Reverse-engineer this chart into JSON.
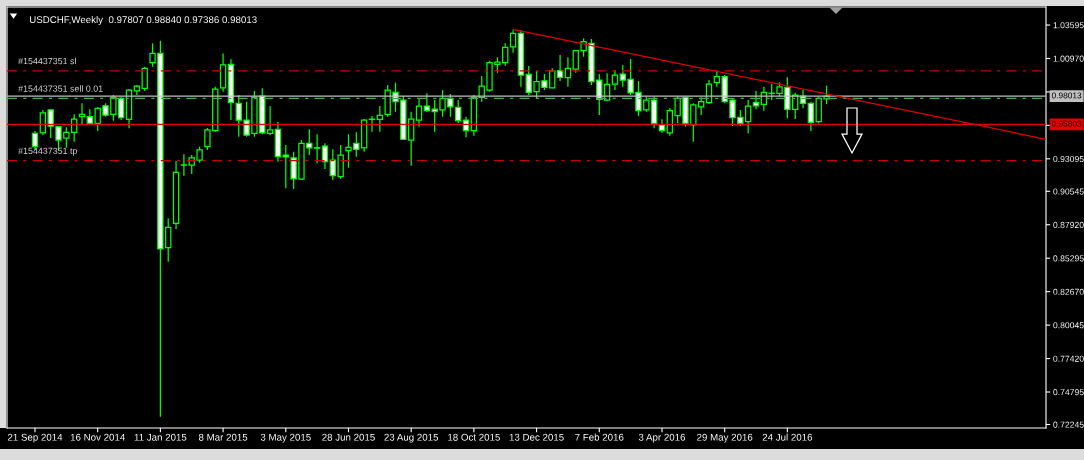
{
  "chart_data": {
    "type": "candlestick",
    "title": "USDCHF,Weekly  0.97807 0.98840 0.97386 0.98013",
    "x": [
      "2014-09-21",
      "2014-09-28",
      "2014-10-05",
      "2014-10-12",
      "2014-10-19",
      "2014-10-26",
      "2014-11-02",
      "2014-11-09",
      "2014-11-16",
      "2014-11-23",
      "2014-11-30",
      "2014-12-07",
      "2014-12-14",
      "2014-12-21",
      "2014-12-28",
      "2015-01-04",
      "2015-01-11",
      "2015-01-18",
      "2015-01-25",
      "2015-02-01",
      "2015-02-08",
      "2015-02-15",
      "2015-02-22",
      "2015-03-01",
      "2015-03-08",
      "2015-03-15",
      "2015-03-22",
      "2015-03-29",
      "2015-04-05",
      "2015-04-12",
      "2015-04-19",
      "2015-04-26",
      "2015-05-03",
      "2015-05-10",
      "2015-05-17",
      "2015-05-24",
      "2015-05-31",
      "2015-06-07",
      "2015-06-14",
      "2015-06-21",
      "2015-06-28",
      "2015-07-05",
      "2015-07-12",
      "2015-07-19",
      "2015-07-26",
      "2015-08-02",
      "2015-08-09",
      "2015-08-16",
      "2015-08-23",
      "2015-08-30",
      "2015-09-06",
      "2015-09-13",
      "2015-09-20",
      "2015-09-27",
      "2015-10-04",
      "2015-10-11",
      "2015-10-18",
      "2015-10-25",
      "2015-11-01",
      "2015-11-08",
      "2015-11-15",
      "2015-11-22",
      "2015-11-29",
      "2015-12-06",
      "2015-12-13",
      "2015-12-20",
      "2015-12-27",
      "2016-01-03",
      "2016-01-10",
      "2016-01-17",
      "2016-01-24",
      "2016-01-31",
      "2016-02-07",
      "2016-02-14",
      "2016-02-21",
      "2016-02-28",
      "2016-03-06",
      "2016-03-13",
      "2016-03-20",
      "2016-03-27",
      "2016-04-03",
      "2016-04-10",
      "2016-04-17",
      "2016-04-24",
      "2016-05-01",
      "2016-05-08",
      "2016-05-15",
      "2016-05-22",
      "2016-05-29",
      "2016-06-05",
      "2016-06-12",
      "2016-06-19",
      "2016-06-26",
      "2016-07-03",
      "2016-07-10",
      "2016-07-17",
      "2016-07-24",
      "2016-07-31",
      "2016-08-07",
      "2016-08-14",
      "2016-08-21",
      "2016-08-28"
    ],
    "series": [
      {
        "color": "#00ff00",
        "colors": [
          "#ffffff",
          "#000000",
          "#ffffff",
          "#ffffff",
          "#000000",
          "#000000",
          "#000000",
          "#ffffff",
          "#000000",
          "#ffffff",
          "#000000",
          "#ffffff",
          "#000000",
          "#000000",
          "#000000",
          "#000000",
          "#ffffff",
          "#000000",
          "#000000",
          "#00ff00",
          "#000000",
          "#000000",
          "#000000",
          "#000000",
          "#000000",
          "#ffffff",
          "#ffffff",
          "#ffffff",
          "#000000",
          "#ffffff",
          "#000000",
          "#ffffff",
          "#ffffff",
          "#ffffff",
          "#000000",
          "#ffffff",
          "#00ff00",
          "#ffffff",
          "#ffffff",
          "#000000",
          "#000000",
          "#ffffff",
          "#000000",
          "#00ff00",
          "#000000",
          "#000000",
          "#ffffff",
          "#ffffff",
          "#000000",
          "#000000",
          "#ffffff",
          "#ffffff",
          "#000000",
          "#ffffff",
          "#ffffff",
          "#ffffff",
          "#000000",
          "#000000",
          "#000000",
          "#000000",
          "#000000",
          "#000000",
          "#ffffff",
          "#ffffff",
          "#000000",
          "#ffffff",
          "#000000",
          "#ffffff",
          "#000000",
          "#000000",
          "#000000",
          "#ffffff",
          "#ffffff",
          "#000000",
          "#000000",
          "#ffffff",
          "#ffffff",
          "#ffffff",
          "#000000",
          "#ffffff",
          "#ffffff",
          "#000000",
          "#000000",
          "#ffffff",
          "#000000",
          "#000000",
          "#000000",
          "#000000",
          "#ffffff",
          "#ffffff",
          "#ffffff",
          "#000000",
          "#ffffff",
          "#000000",
          "#00ff00",
          "#000000",
          "#ffffff",
          "#000000",
          "#ffffff",
          "#ffffff",
          "#000000",
          "#000000"
        ],
        "ohlc": [
          [
            0.951,
            0.9528,
            0.9379,
            0.9405
          ],
          [
            0.9514,
            0.9693,
            0.9496,
            0.9671
          ],
          [
            0.9693,
            0.9698,
            0.9473,
            0.9567
          ],
          [
            0.9562,
            0.9567,
            0.9379,
            0.9457
          ],
          [
            0.9471,
            0.9557,
            0.9399,
            0.9518
          ],
          [
            0.9518,
            0.9659,
            0.9444,
            0.9622
          ],
          [
            0.964,
            0.9745,
            0.9575,
            0.9659
          ],
          [
            0.964,
            0.9698,
            0.958,
            0.9588
          ],
          [
            0.9588,
            0.9714,
            0.9528,
            0.9706
          ],
          [
            0.9726,
            0.9745,
            0.964,
            0.9653
          ],
          [
            0.9659,
            0.981,
            0.9609,
            0.9792
          ],
          [
            0.9784,
            0.9792,
            0.9614,
            0.9632
          ],
          [
            0.962,
            0.9857,
            0.9549,
            0.9849
          ],
          [
            0.9842,
            0.9889,
            0.981,
            0.9881
          ],
          [
            0.9863,
            1.0032,
            0.9842,
            1.002
          ],
          [
            1.0064,
            1.0216,
            1.0032,
            1.0137
          ],
          [
            1.0137,
            1.0236,
            0.7286,
            0.8602
          ],
          [
            0.8612,
            0.8843,
            0.8502,
            0.8772
          ],
          [
            0.8803,
            0.9292,
            0.8759,
            0.9203
          ],
          [
            0.9261,
            0.9345,
            0.9177,
            0.9261
          ],
          [
            0.9261,
            0.9339,
            0.919,
            0.9316
          ],
          [
            0.9299,
            0.9405,
            0.9279,
            0.9379
          ],
          [
            0.9405,
            0.9551,
            0.9379,
            0.9536
          ],
          [
            0.953,
            0.9875,
            0.9522,
            0.9857
          ],
          [
            0.9867,
            1.0137,
            0.9836,
            1.0046
          ],
          [
            1.0051,
            1.009,
            0.9614,
            0.9753
          ],
          [
            0.9745,
            0.981,
            0.9483,
            0.9614
          ],
          [
            0.9614,
            0.9758,
            0.9483,
            0.9496
          ],
          [
            0.951,
            0.9842,
            0.9483,
            0.9792
          ],
          [
            0.9802,
            0.9863,
            0.9502,
            0.9514
          ],
          [
            0.951,
            0.9724,
            0.9496,
            0.9536
          ],
          [
            0.9541,
            0.9601,
            0.9287,
            0.9326
          ],
          [
            0.9339,
            0.9418,
            0.9078,
            0.9324
          ],
          [
            0.9316,
            0.9365,
            0.9073,
            0.9153
          ],
          [
            0.9151,
            0.9457,
            0.9143,
            0.9431
          ],
          [
            0.9431,
            0.9541,
            0.9339,
            0.9396
          ],
          [
            0.9396,
            0.9502,
            0.9274,
            0.9396
          ],
          [
            0.941,
            0.9431,
            0.923,
            0.9287
          ],
          [
            0.9299,
            0.9384,
            0.9143,
            0.9177
          ],
          [
            0.9169,
            0.9418,
            0.9153,
            0.9339
          ],
          [
            0.9373,
            0.9502,
            0.924,
            0.9399
          ],
          [
            0.9431,
            0.9518,
            0.9326,
            0.9384
          ],
          [
            0.9396,
            0.9622,
            0.9365,
            0.9614
          ],
          [
            0.962,
            0.9645,
            0.9522,
            0.962
          ],
          [
            0.962,
            0.9724,
            0.9522,
            0.965
          ],
          [
            0.9659,
            0.9889,
            0.964,
            0.9849
          ],
          [
            0.9831,
            0.9907,
            0.9679,
            0.9758
          ],
          [
            0.9771,
            0.9802,
            0.9457,
            0.9463
          ],
          [
            0.9457,
            0.9679,
            0.9256,
            0.9622
          ],
          [
            0.9614,
            0.9784,
            0.9562,
            0.9724
          ],
          [
            0.9724,
            0.9824,
            0.9677,
            0.9687
          ],
          [
            0.9699,
            0.9771,
            0.9522,
            0.9679
          ],
          [
            0.9693,
            0.9849,
            0.964,
            0.9784
          ],
          [
            0.9784,
            0.9818,
            0.964,
            0.9718
          ],
          [
            0.9714,
            0.9771,
            0.9588,
            0.9609
          ],
          [
            0.9614,
            0.964,
            0.9478,
            0.953
          ],
          [
            0.953,
            0.981,
            0.9491,
            0.9792
          ],
          [
            0.9792,
            0.9959,
            0.9758,
            0.9881
          ],
          [
            0.9849,
            1.0079,
            0.9836,
            1.0064
          ],
          [
            1.0051,
            1.0106,
            0.9985,
            1.0069
          ],
          [
            1.0064,
            1.0216,
            1.004,
            1.0185
          ],
          [
            1.0189,
            1.0319,
            1.0142,
            1.0294
          ],
          [
            1.0294,
            1.0319,
            0.9875,
            0.9967
          ],
          [
            0.9973,
            1.0038,
            0.981,
            0.9831
          ],
          [
            0.9836,
            1.0001,
            0.9784,
            0.9915
          ],
          [
            0.9922,
            0.9975,
            0.9849,
            0.9871
          ],
          [
            0.9867,
            1.002,
            0.9863,
            0.9999
          ],
          [
            1.0001,
            1.0124,
            0.992,
            0.9949
          ],
          [
            0.9946,
            1.0106,
            0.9875,
            1.002
          ],
          [
            1.0014,
            1.0163,
            0.9985,
            1.0158
          ],
          [
            1.0158,
            1.0255,
            1.0111,
            1.0229
          ],
          [
            1.0216,
            1.025,
            0.9889,
            0.9915
          ],
          [
            0.9928,
            0.9975,
            0.9653,
            0.9776
          ],
          [
            0.9771,
            0.9981,
            0.9763,
            0.9894
          ],
          [
            0.9896,
            1.0006,
            0.9849,
            0.9967
          ],
          [
            0.9975,
            1.0046,
            0.9875,
            0.9928
          ],
          [
            0.9933,
            1.0093,
            0.981,
            0.9828
          ],
          [
            0.9831,
            0.992,
            0.9645,
            0.9687
          ],
          [
            0.9693,
            0.9797,
            0.9679,
            0.9771
          ],
          [
            0.9771,
            0.9797,
            0.9549,
            0.9588
          ],
          [
            0.9575,
            0.962,
            0.9514,
            0.953
          ],
          [
            0.9514,
            0.9708,
            0.9491,
            0.9687
          ],
          [
            0.9648,
            0.9802,
            0.9588,
            0.9784
          ],
          [
            0.9792,
            0.9795,
            0.9562,
            0.9588
          ],
          [
            0.9575,
            0.9745,
            0.9444,
            0.9732
          ],
          [
            0.9718,
            0.9792,
            0.9653,
            0.9758
          ],
          [
            0.975,
            0.9928,
            0.974,
            0.9896
          ],
          [
            0.9907,
            0.9993,
            0.9875,
            0.9954
          ],
          [
            0.9954,
            0.9967,
            0.975,
            0.9758
          ],
          [
            0.9771,
            0.9784,
            0.9567,
            0.9632
          ],
          [
            0.9635,
            0.9693,
            0.9567,
            0.9588
          ],
          [
            0.9601,
            0.9771,
            0.951,
            0.9724
          ],
          [
            0.9753,
            0.9842,
            0.9698,
            0.9726
          ],
          [
            0.9737,
            0.9875,
            0.9687,
            0.9831
          ],
          [
            0.9824,
            0.9896,
            0.9771,
            0.9824
          ],
          [
            0.9824,
            0.991,
            0.9797,
            0.9875
          ],
          [
            0.9871,
            0.9949,
            0.9627,
            0.9698
          ],
          [
            0.9698,
            0.9828,
            0.9622,
            0.981
          ],
          [
            0.9802,
            0.9849,
            0.9706,
            0.9745
          ],
          [
            0.9745,
            0.9758,
            0.9528,
            0.9596
          ],
          [
            0.9601,
            0.9792,
            0.9588,
            0.9784
          ],
          [
            0.97807,
            0.9884,
            0.97386,
            0.98013
          ]
        ]
      },
      {
        "type": "line",
        "color": "#e60000",
        "x": [
          "2015-11-22",
          "2017-03-12"
        ],
        "values": [
          1.0326,
          0.9463
        ]
      }
    ],
    "xlim": [
      "2014-08-27",
      "2017-03-12"
    ],
    "xticks": [
      {
        "value": "2014-09-21",
        "label": "21 Sep 2014"
      },
      {
        "value": "2014-11-16",
        "label": "16 Nov 2014"
      },
      {
        "value": "2015-01-11",
        "label": "11 Jan 2015"
      },
      {
        "value": "2015-03-08",
        "label": "8 Mar 2015"
      },
      {
        "value": "2015-05-03",
        "label": "3 May 2015"
      },
      {
        "value": "2015-06-28",
        "label": "28 Jun 2015"
      },
      {
        "value": "2015-08-23",
        "label": "23 Aug 2015"
      },
      {
        "value": "2015-10-18",
        "label": "18 Oct 2015"
      },
      {
        "value": "2015-12-13",
        "label": "13 Dec 2015"
      },
      {
        "value": "2016-02-07",
        "label": "7 Feb 2016"
      },
      {
        "value": "2016-04-03",
        "label": "3 Apr 2016"
      },
      {
        "value": "2016-05-29",
        "label": "29 May 2016"
      },
      {
        "value": "2016-07-24",
        "label": "24 Jul 2016"
      }
    ],
    "ylim": [
      0.7197,
      1.0501
    ],
    "yticks": [
      1.03595,
      {
        "value": 1.0097,
        "label": "1.00970"
      },
      {
        "value": 0.98345,
        "label": null
      },
      {
        "value": 0.9572,
        "label": null
      },
      0.93095,
      0.90545,
      {
        "value": 0.8792,
        "label": "0.87920"
      },
      0.85295,
      {
        "value": 0.8267,
        "label": "0.82670"
      },
      0.80045,
      {
        "value": 0.7742,
        "label": "0.77420"
      },
      0.74795,
      0.72245
    ],
    "ref_lines": [
      {
        "axis": "y",
        "value": 1.0,
        "label": "#154437351 sl",
        "color": "#c80000",
        "line_style": "dashdot"
      },
      {
        "axis": "y",
        "value": 0.9784,
        "label": "#154437351 sell 0.01",
        "color": "#3cb043",
        "line_style": "dashdot"
      },
      {
        "axis": "y",
        "value": 0.9295,
        "label": "#154437351 tp",
        "color": "#c80000",
        "line_style": "dashdot"
      },
      {
        "axis": "y",
        "value": 0.98013,
        "label": "0.98013",
        "color": "#c0c0c0",
        "line_style": "solid"
      },
      {
        "axis": "y",
        "value": 0.95803,
        "label": "0.95803",
        "color": "#e60000",
        "line_style": "solid"
      }
    ]
  }
}
